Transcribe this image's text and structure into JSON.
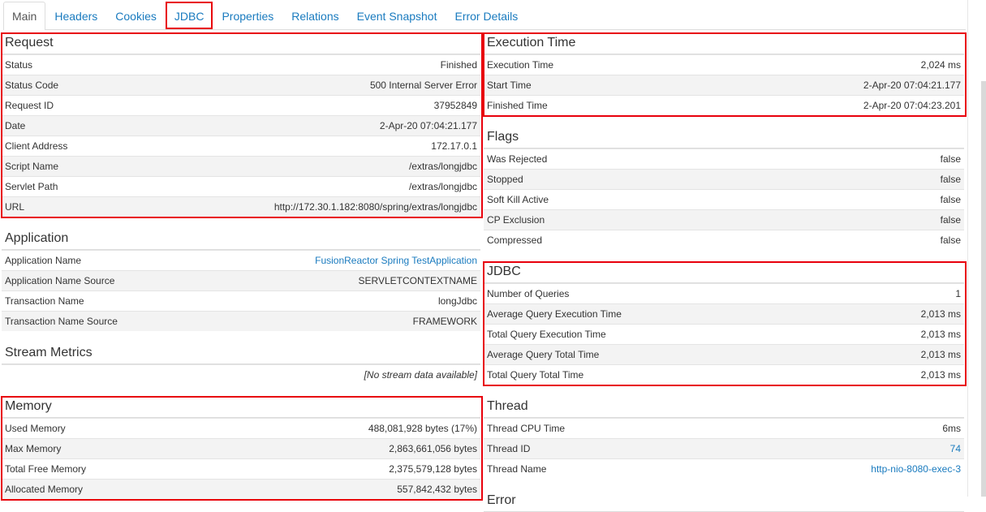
{
  "tabs": [
    "Main",
    "Headers",
    "Cookies",
    "JDBC",
    "Properties",
    "Relations",
    "Event Snapshot",
    "Error Details"
  ],
  "active_tab": 0,
  "highlighted_tab": 3,
  "left_sections": [
    {
      "title": "Request",
      "highlighted": true,
      "rows": [
        {
          "label": "Status",
          "value": "Finished"
        },
        {
          "label": "Status Code",
          "value": "500 Internal Server Error"
        },
        {
          "label": "Request ID",
          "value": "37952849"
        },
        {
          "label": "Date",
          "value": "2-Apr-20 07:04:21.177"
        },
        {
          "label": "Client Address",
          "value": "172.17.0.1"
        },
        {
          "label": "Script Name",
          "value": "/extras/longjdbc"
        },
        {
          "label": "Servlet Path",
          "value": "/extras/longjdbc"
        },
        {
          "label": "URL",
          "value": "http://172.30.1.182:8080/spring/extras/longjdbc"
        }
      ]
    },
    {
      "title": "Application",
      "rows": [
        {
          "label": "Application Name",
          "value": "FusionReactor Spring TestApplication",
          "link": true
        },
        {
          "label": "Application Name Source",
          "value": "SERVLETCONTEXTNAME"
        },
        {
          "label": "Transaction Name",
          "value": "longJdbc"
        },
        {
          "label": "Transaction Name Source",
          "value": "FRAMEWORK"
        }
      ]
    },
    {
      "title": "Stream Metrics",
      "rows": [
        {
          "value": "[No stream data available]",
          "italic": true
        }
      ]
    },
    {
      "title": "Memory",
      "highlighted": true,
      "rows": [
        {
          "label": "Used Memory",
          "value": "488,081,928 bytes (17%)"
        },
        {
          "label": "Max Memory",
          "value": "2,863,661,056 bytes"
        },
        {
          "label": "Total Free Memory",
          "value": "2,375,579,128 bytes"
        },
        {
          "label": "Allocated Memory",
          "value": "557,842,432 bytes"
        }
      ]
    }
  ],
  "right_sections": [
    {
      "title": "Execution Time",
      "highlighted": true,
      "rows": [
        {
          "label": "Execution Time",
          "value": "2,024 ms"
        },
        {
          "label": "Start Time",
          "value": "2-Apr-20 07:04:21.177"
        },
        {
          "label": "Finished Time",
          "value": "2-Apr-20 07:04:23.201"
        }
      ]
    },
    {
      "title": "Flags",
      "rows": [
        {
          "label": "Was Rejected",
          "value": "false"
        },
        {
          "label": "Stopped",
          "value": "false"
        },
        {
          "label": "Soft Kill Active",
          "value": "false"
        },
        {
          "label": "CP Exclusion",
          "value": "false"
        },
        {
          "label": "Compressed",
          "value": "false"
        }
      ]
    },
    {
      "title": "JDBC",
      "highlighted": true,
      "rows": [
        {
          "label": "Number of Queries",
          "value": "1"
        },
        {
          "label": "Average Query Execution Time",
          "value": "2,013 ms"
        },
        {
          "label": "Total Query Execution Time",
          "value": "2,013 ms"
        },
        {
          "label": "Average Query Total Time",
          "value": "2,013 ms"
        },
        {
          "label": "Total Query Total Time",
          "value": "2,013 ms"
        }
      ]
    },
    {
      "title": "Thread",
      "rows": [
        {
          "label": "Thread CPU Time",
          "value": "6ms"
        },
        {
          "label": "Thread ID",
          "value": "74",
          "link": true
        },
        {
          "label": "Thread Name",
          "value": "http-nio-8080-exec-3",
          "link": true
        }
      ]
    },
    {
      "title": "Error",
      "rows": []
    }
  ]
}
